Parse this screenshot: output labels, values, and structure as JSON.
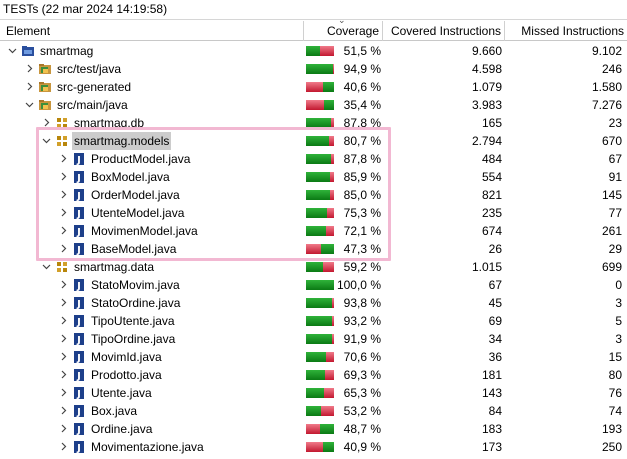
{
  "title": "TESTs (22 mar 2024 14:19:58)",
  "columns": {
    "element": "Element",
    "coverage": "Coverage",
    "covered": "Covered Instructions",
    "missed": "Missed Instructions"
  },
  "colors": {
    "covered_bar": "#1a9a25",
    "missed_bar": "#d83a50",
    "selection": "#cccccc",
    "highlight_box": "#f2b8d2"
  },
  "rows": [
    {
      "name": "smartmag",
      "icon": "project-icon",
      "coverage": "51,5 %",
      "ratio": 0.515,
      "covered": "9.660",
      "missed": "9.102"
    },
    {
      "name": "src/test/java",
      "icon": "source-folder-icon",
      "coverage": "94,9 %",
      "ratio": 0.949,
      "covered": "4.598",
      "missed": "246"
    },
    {
      "name": "src-generated",
      "icon": "source-folder-icon",
      "coverage": "40,6 %",
      "ratio": 0.406,
      "covered": "1.079",
      "missed": "1.580"
    },
    {
      "name": "src/main/java",
      "icon": "source-folder-icon",
      "coverage": "35,4 %",
      "ratio": 0.354,
      "covered": "3.983",
      "missed": "7.276"
    },
    {
      "name": "smartmag.db",
      "icon": "package-icon",
      "coverage": "87,8 %",
      "ratio": 0.878,
      "covered": "165",
      "missed": "23"
    },
    {
      "name": "smartmag.models",
      "icon": "package-icon",
      "coverage": "80,7 %",
      "ratio": 0.807,
      "covered": "2.794",
      "missed": "670"
    },
    {
      "name": "ProductModel.java",
      "icon": "java-file-icon",
      "coverage": "87,8 %",
      "ratio": 0.878,
      "covered": "484",
      "missed": "67"
    },
    {
      "name": "BoxModel.java",
      "icon": "java-file-icon",
      "coverage": "85,9 %",
      "ratio": 0.859,
      "covered": "554",
      "missed": "91"
    },
    {
      "name": "OrderModel.java",
      "icon": "java-file-icon",
      "coverage": "85,0 %",
      "ratio": 0.85,
      "covered": "821",
      "missed": "145"
    },
    {
      "name": "UtenteModel.java",
      "icon": "java-file-icon",
      "coverage": "75,3 %",
      "ratio": 0.753,
      "covered": "235",
      "missed": "77"
    },
    {
      "name": "MovimenModel.java",
      "icon": "java-file-icon",
      "coverage": "72,1 %",
      "ratio": 0.721,
      "covered": "674",
      "missed": "261"
    },
    {
      "name": "BaseModel.java",
      "icon": "java-file-icon",
      "coverage": "47,3 %",
      "ratio": 0.473,
      "covered": "26",
      "missed": "29"
    },
    {
      "name": "smartmag.data",
      "icon": "package-icon",
      "coverage": "59,2 %",
      "ratio": 0.592,
      "covered": "1.015",
      "missed": "699"
    },
    {
      "name": "StatoMovim.java",
      "icon": "java-file-icon",
      "coverage": "100,0 %",
      "ratio": 1.0,
      "covered": "67",
      "missed": "0"
    },
    {
      "name": "StatoOrdine.java",
      "icon": "java-file-icon",
      "coverage": "93,8 %",
      "ratio": 0.938,
      "covered": "45",
      "missed": "3"
    },
    {
      "name": "TipoUtente.java",
      "icon": "java-file-icon",
      "coverage": "93,2 %",
      "ratio": 0.932,
      "covered": "69",
      "missed": "5"
    },
    {
      "name": "TipoOrdine.java",
      "icon": "java-file-icon",
      "coverage": "91,9 %",
      "ratio": 0.919,
      "covered": "34",
      "missed": "3"
    },
    {
      "name": "MovimId.java",
      "icon": "java-file-icon",
      "coverage": "70,6 %",
      "ratio": 0.706,
      "covered": "36",
      "missed": "15"
    },
    {
      "name": "Prodotto.java",
      "icon": "java-file-icon",
      "coverage": "69,3 %",
      "ratio": 0.693,
      "covered": "181",
      "missed": "80"
    },
    {
      "name": "Utente.java",
      "icon": "java-file-icon",
      "coverage": "65,3 %",
      "ratio": 0.653,
      "covered": "143",
      "missed": "76"
    },
    {
      "name": "Box.java",
      "icon": "java-file-icon",
      "coverage": "53,2 %",
      "ratio": 0.532,
      "covered": "84",
      "missed": "74"
    },
    {
      "name": "Ordine.java",
      "icon": "java-file-icon",
      "coverage": "48,7 %",
      "ratio": 0.487,
      "covered": "183",
      "missed": "193"
    },
    {
      "name": "Movimentazione.java",
      "icon": "java-file-icon",
      "coverage": "40,9 %",
      "ratio": 0.409,
      "covered": "173",
      "missed": "250"
    }
  ]
}
